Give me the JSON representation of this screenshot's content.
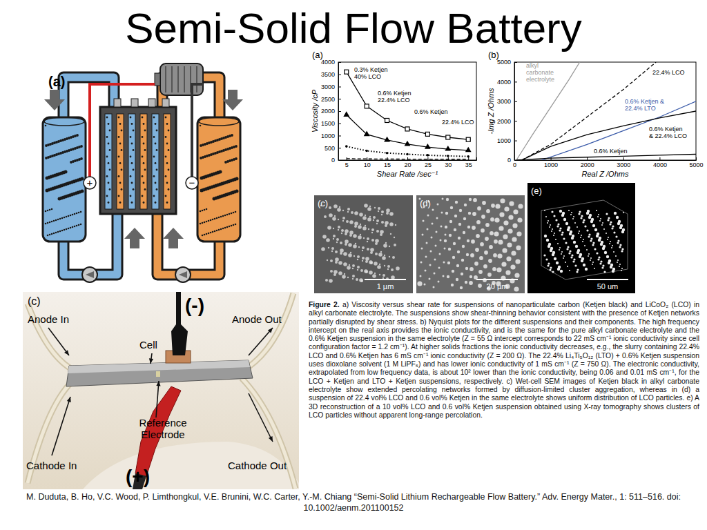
{
  "title": "Semi-Solid Flow Battery",
  "diagram": {
    "label": "(a)",
    "positive": "+",
    "negative": "−"
  },
  "chart_data": [
    {
      "type": "line",
      "title": "(a)",
      "x_label": "Shear Rate /sec⁻¹",
      "y_label": "Viscosity /cP",
      "x": [
        5,
        10,
        15,
        20,
        25,
        30,
        35
      ],
      "xlim": [
        3,
        37
      ],
      "xticks": [
        5,
        10,
        15,
        20,
        25,
        30,
        35
      ],
      "ylim": [
        0,
        4000
      ],
      "yticks": [
        0,
        500,
        1000,
        1500,
        2000,
        2500,
        3000,
        3500,
        4000
      ],
      "series": [
        {
          "name": "0.3% Ketjen\n40% LCO",
          "color": "#000000",
          "marker": "square",
          "line_style": "solid",
          "values": [
            3600,
            2200,
            1620,
            1270,
            1060,
            930,
            840
          ]
        },
        {
          "name": "0.6% Ketjen\n22.4% LCO",
          "color": "#000000",
          "marker": "triangle",
          "line_style": "solid",
          "values": [
            1850,
            1050,
            820,
            650,
            530,
            450,
            400
          ]
        },
        {
          "name": "0.6% Ketjen",
          "color": "#000000",
          "marker": "dot",
          "line_style": "dotted",
          "values": [
            560,
            380,
            290,
            240,
            200,
            170,
            150
          ]
        },
        {
          "name": "22.4% LCO",
          "color": "#000000",
          "marker": "none",
          "line_style": "dashed",
          "values": [
            60,
            50,
            45,
            40,
            40,
            35,
            35
          ]
        }
      ]
    },
    {
      "type": "line",
      "title": "(b)",
      "x_label": "Real Z /Ohms",
      "y_label": "-Img Z /Ohms",
      "xlim": [
        0,
        5000
      ],
      "xticks": [
        0,
        1000,
        2000,
        3000,
        4000,
        5000
      ],
      "ylim": [
        0,
        5000
      ],
      "yticks": [
        0,
        1000,
        2000,
        3000,
        4000,
        5000
      ],
      "series": [
        {
          "name": "alkyl\ncarbonate\nelectrolyte",
          "color": "#9a9a9a",
          "line_style": "solid",
          "x": [
            55,
            500,
            1000,
            1500,
            1800
          ],
          "values": [
            0,
            1300,
            2700,
            4100,
            5000
          ]
        },
        {
          "name": "22.4% LCO",
          "color": "#000000",
          "line_style": "dashed",
          "x": [
            200,
            1000,
            2000,
            3000,
            3900
          ],
          "values": [
            0,
            800,
            2200,
            3600,
            5000
          ]
        },
        {
          "name": "0.6% Ketjen &\n22.4% LTO",
          "color": "#3b5ba9",
          "line_style": "solid",
          "x": [
            750,
            2000,
            3000,
            4000,
            5000
          ],
          "values": [
            0,
            800,
            1500,
            2200,
            3000
          ]
        },
        {
          "name": "0.6% Ketjen\n& 22.4% LCO",
          "color": "#000000",
          "line_style": "solid",
          "x": [
            200,
            1000,
            2000,
            3000,
            4000,
            5000
          ],
          "values": [
            0,
            700,
            1300,
            1750,
            2150,
            2500
          ]
        },
        {
          "name": "0.6% Ketjen",
          "color": "#000000",
          "line_style": "solid",
          "x": [
            55,
            1000,
            2000,
            3000,
            4000,
            5000
          ],
          "values": [
            0,
            100,
            150,
            200,
            250,
            300
          ]
        }
      ]
    }
  ],
  "sem_images": [
    {
      "label": "(c)",
      "scale_bar": "1 µm"
    },
    {
      "label": "(d)",
      "scale_bar": "20 µm"
    },
    {
      "label": "(e)",
      "scale_bar": "50 um"
    }
  ],
  "photo": {
    "label": "(c)",
    "negative": "(-)",
    "positive": "(+)",
    "anode_in": "Anode In",
    "anode_out": "Anode Out",
    "cell": "Cell",
    "reference": "Reference\nElectrode",
    "cathode_in": "Cathode In",
    "cathode_out": "Cathode Out"
  },
  "caption": {
    "heading": "Figure 2.",
    "text": "a) Viscosity versus shear rate for suspensions of nanoparticulate carbon (Ketjen black) and LiCoO₂ (LCO) in alkyl carbonate electrolyte. The suspensions show shear-thinning behavior consistent with the presence of Ketjen networks partially disrupted by shear stress. b) Nyquist plots for the different suspensions and their components. The high frequency intercept on the real axis provides the ionic conductivity, and is the same for the pure alkyl carbonate electrolyte and the 0.6% Ketjen suspension in the same electrolyte (Z = 55 Ω intercept corresponds to 22 mS cm⁻¹ ionic conductivity since cell configuration factor = 1.2 cm⁻¹). At higher solids fractions the ionic conductivity decreases, e.g., the slurry containing 22.4% LCO and 0.6% Ketjen has 6 mS cm⁻¹ ionic conductivity (Z = 200 Ω). The 22.4% Li₄Ti₅O₁₂ (LTO) + 0.6% Ketjen suspension uses dioxolane solvent (1 M LiPF₆) and has lower ionic conductivity of 1 mS cm⁻¹ (Z = 750 Ω). The electronic conductivity, extrapolated from low frequency data, is about 10² lower than the ionic conductivity, being 0.06 and 0.01 mS cm⁻¹, for the LCO + Ketjen and LTO + Ketjen suspensions, respectively. c) Wet-cell SEM images of Ketjen black in alkyl carbonate electrolyte show extended percolating networks formed by diffusion-limited cluster aggregation, whereas in (d) a suspension of 22.4 vol% LCO and 0.6 vol% Ketjen in the same electrolyte shows uniform distribution of LCO particles. e) A 3D reconstruction of a 10 vol% LCO and 0.6 vol% Ketjen suspension obtained using X-ray tomography shows clusters of LCO particles without apparent long-range percolation."
  },
  "citation": "M. Duduta, B. Ho, V.C. Wood, P. Limthongkul, V.E. Brunini, W.C. Carter, Y.-M. Chiang “Semi-Solid Lithium Rechargeable Flow Battery.” Adv. Energy Mater., 1: 511–516. doi: 10.1002/aenm.201100152"
}
